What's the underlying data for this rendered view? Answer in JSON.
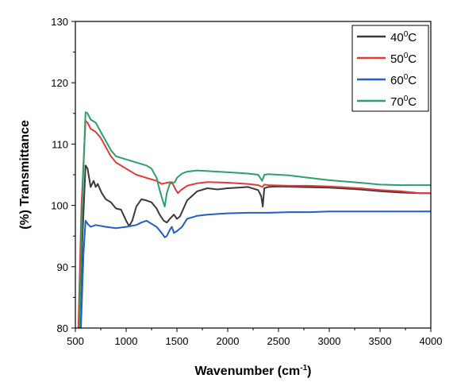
{
  "chart_data": {
    "type": "line",
    "xlabel": "Wavenumber (cm",
    "xlabel_sup": "-1",
    "xlabel_end": ")",
    "ylabel": "(%) Transmittance",
    "xlim": [
      500,
      4000
    ],
    "ylim": [
      80,
      130
    ],
    "xticks": [
      500,
      1000,
      1500,
      2000,
      2500,
      3000,
      3500,
      4000
    ],
    "yticks": [
      80,
      90,
      100,
      110,
      120,
      130
    ],
    "grid": false,
    "legend_position": "top-right",
    "series": [
      {
        "name": "40",
        "name_sup": "0",
        "name_end": "C",
        "color": "#3a3a3a",
        "x": [
          540,
          570,
          600,
          620,
          650,
          680,
          700,
          720,
          760,
          800,
          850,
          900,
          950,
          1000,
          1030,
          1060,
          1100,
          1150,
          1200,
          1250,
          1300,
          1330,
          1370,
          1400,
          1430,
          1470,
          1500,
          1530,
          1600,
          1700,
          1800,
          1900,
          2000,
          2100,
          2200,
          2300,
          2330,
          2345,
          2360,
          2400,
          2500,
          2700,
          3000,
          3300,
          3500,
          3700,
          3900,
          4000
        ],
        "y": [
          80,
          95,
          106.5,
          106,
          103,
          104,
          103,
          103.5,
          102,
          101,
          100.5,
          99.5,
          99.3,
          97.5,
          96.6,
          97.5,
          99.8,
          101,
          100.8,
          100.5,
          99.5,
          98.5,
          97.5,
          97.2,
          97.8,
          98.5,
          97.8,
          98.2,
          100.8,
          102.3,
          102.8,
          102.6,
          102.8,
          102.9,
          103,
          102.5,
          101.5,
          99.8,
          102.8,
          103,
          103.1,
          103,
          102.9,
          102.6,
          102.3,
          102.1,
          102,
          102
        ]
      },
      {
        "name": "50",
        "name_sup": "0",
        "name_end": "C",
        "color": "#e03a3a",
        "x": [
          530,
          560,
          600,
          620,
          650,
          700,
          750,
          800,
          850,
          900,
          1000,
          1100,
          1200,
          1300,
          1350,
          1380,
          1400,
          1450,
          1490,
          1510,
          1540,
          1600,
          1700,
          1800,
          2000,
          2200,
          2300,
          2340,
          2360,
          2400,
          2600,
          2800,
          3000,
          3300,
          3500,
          3700,
          3900,
          4000
        ],
        "y": [
          80,
          100,
          113.8,
          113.5,
          112.5,
          112,
          111,
          109.5,
          108,
          107,
          106,
          105,
          104.5,
          104,
          103.5,
          103.6,
          103.7,
          103.8,
          102.5,
          102,
          102.5,
          103.2,
          103.6,
          103.8,
          103.7,
          103.5,
          103.3,
          103,
          103.4,
          103.3,
          103.2,
          103.2,
          103.1,
          102.8,
          102.5,
          102.3,
          102,
          102
        ]
      },
      {
        "name": "60",
        "name_sup": "0",
        "name_end": "C",
        "color": "#1f5fc8",
        "x": [
          555,
          580,
          600,
          620,
          650,
          700,
          800,
          900,
          1000,
          1100,
          1150,
          1200,
          1250,
          1300,
          1350,
          1380,
          1400,
          1430,
          1450,
          1470,
          1500,
          1550,
          1600,
          1700,
          1800,
          1900,
          2000,
          2200,
          2400,
          2600,
          2800,
          3000,
          3200,
          3400,
          3600,
          3800,
          4000
        ],
        "y": [
          80,
          92,
          97.5,
          97,
          96.5,
          96.8,
          96.5,
          96.3,
          96.5,
          96.8,
          97.2,
          97.5,
          97,
          96.5,
          95.5,
          94.8,
          95,
          96,
          96.5,
          95.5,
          95.8,
          96.5,
          97.8,
          98.3,
          98.5,
          98.6,
          98.7,
          98.8,
          98.8,
          98.9,
          98.9,
          99,
          99,
          99,
          99,
          99,
          99
        ]
      },
      {
        "name": "70",
        "name_sup": "0",
        "name_end": "C",
        "color": "#2ca06a",
        "x": [
          540,
          570,
          600,
          620,
          650,
          700,
          750,
          800,
          850,
          900,
          1000,
          1100,
          1200,
          1250,
          1300,
          1330,
          1360,
          1380,
          1400,
          1430,
          1480,
          1500,
          1550,
          1600,
          1700,
          1800,
          2000,
          2200,
          2300,
          2340,
          2360,
          2400,
          2600,
          2800,
          3000,
          3300,
          3500,
          3700,
          3900,
          4000
        ],
        "y": [
          80,
          102,
          115.2,
          115,
          114,
          113.5,
          112,
          110.5,
          109,
          108,
          107.5,
          107,
          106.5,
          106,
          104.5,
          102.5,
          100.8,
          99.8,
          102,
          103.5,
          103.8,
          104.5,
          105.2,
          105.5,
          105.7,
          105.6,
          105.4,
          105.2,
          105,
          104,
          105,
          105.1,
          104.9,
          104.5,
          104.1,
          103.7,
          103.4,
          103.3,
          103.3,
          103.3
        ]
      }
    ]
  }
}
